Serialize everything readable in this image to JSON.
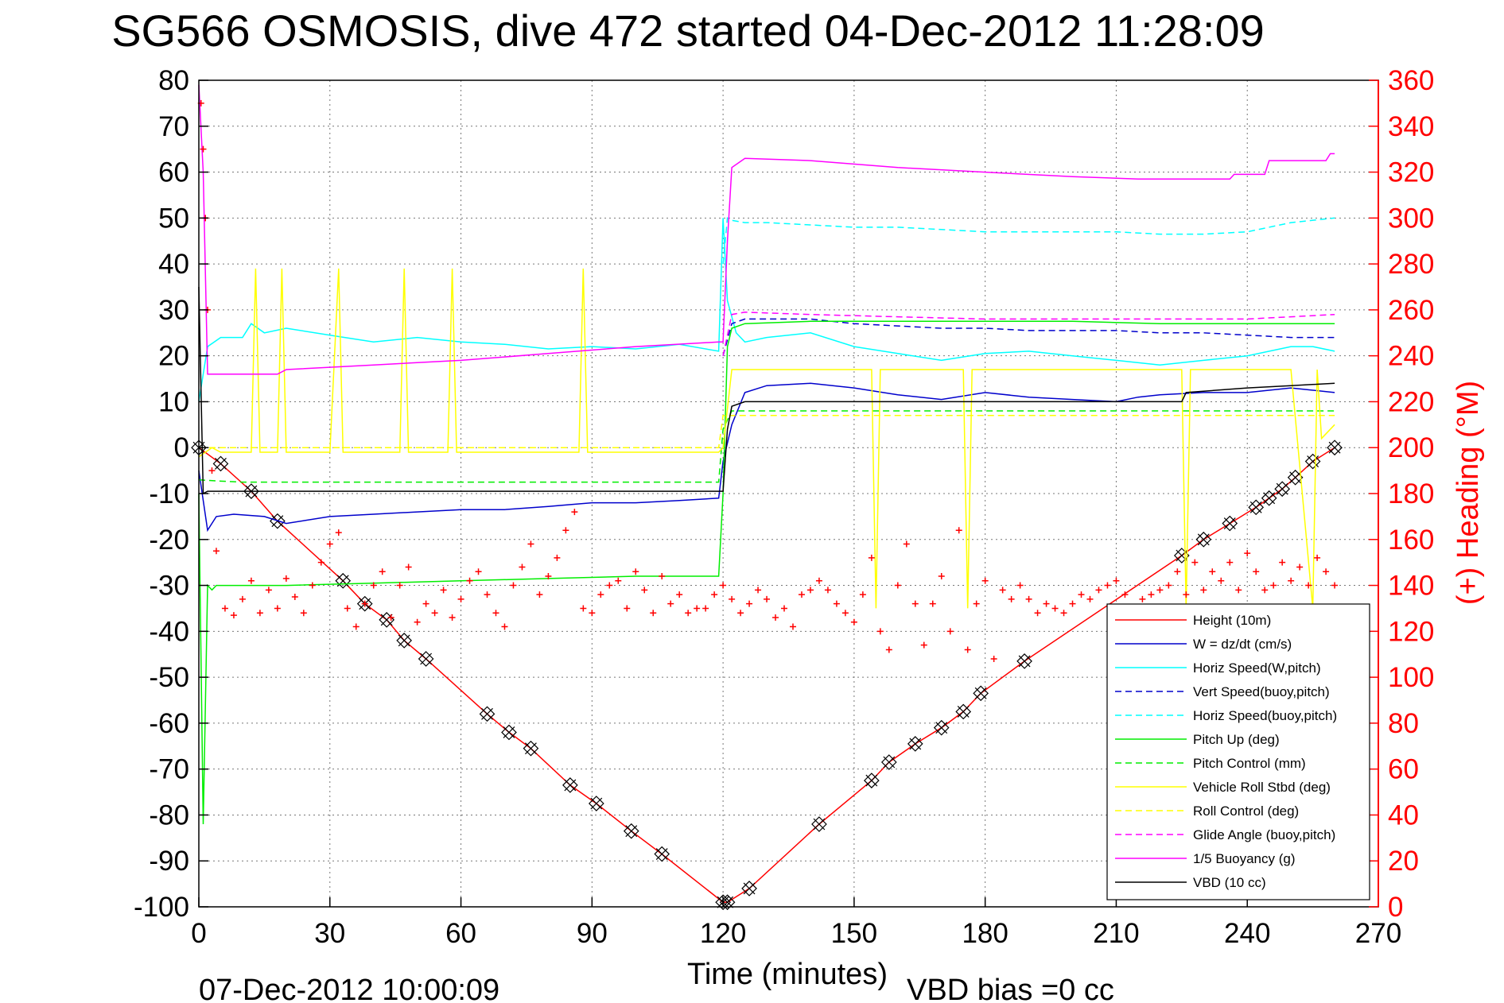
{
  "chart_data": {
    "type": "line",
    "title": "SG566 OSMOSIS, dive 472 started 04-Dec-2012 11:28:09",
    "xlabel": "Time (minutes)",
    "y2label": "(+) Heading (°M)",
    "footer_left": "07-Dec-2012 10:00:09",
    "footer_right": "VBD bias =0 cc",
    "xlim": [
      0,
      270
    ],
    "ylim": [
      -100,
      80
    ],
    "y2lim": [
      0,
      360
    ],
    "xticks": [
      "0",
      "30",
      "60",
      "90",
      "120",
      "150",
      "180",
      "210",
      "240",
      "270"
    ],
    "yticks": [
      "80",
      "70",
      "60",
      "50",
      "40",
      "30",
      "20",
      "10",
      "0",
      "-10",
      "-20",
      "-30",
      "-40",
      "-50",
      "-60",
      "-70",
      "-80",
      "-90",
      "-100"
    ],
    "y2ticks": [
      "360",
      "340",
      "320",
      "300",
      "280",
      "260",
      "240",
      "220",
      "200",
      "180",
      "160",
      "140",
      "120",
      "100",
      "80",
      "60",
      "40",
      "20",
      "0"
    ],
    "grid": true,
    "legend_position": "bottom-right",
    "colors": {
      "red": "#ff0000",
      "blue": "#0000cc",
      "cyan": "#00ffff",
      "green": "#00ee00",
      "yellow": "#ffff00",
      "magenta": "#ff00ff",
      "black": "#000000"
    },
    "series": [
      {
        "name": "Height (10m)",
        "color": "#ff0000",
        "dash": "solid",
        "x": [
          0,
          5,
          12,
          18,
          33,
          38,
          43,
          47,
          52,
          66,
          71,
          76,
          85,
          91,
          99,
          106,
          120,
          121,
          126,
          142,
          154,
          158,
          164,
          170,
          175,
          179,
          189,
          225,
          230,
          236,
          242,
          245,
          248,
          251,
          255,
          260
        ],
        "y": [
          0,
          -3.5,
          -9.5,
          -16,
          -29,
          -34,
          -37.5,
          -42,
          -46,
          -58,
          -62,
          -65.5,
          -73.5,
          -77.5,
          -83.5,
          -88.5,
          -99,
          -99,
          -96,
          -82,
          -72.5,
          -68.5,
          -64.5,
          -61,
          -57.5,
          -53.5,
          -46.5,
          -23.5,
          -20,
          -16.5,
          -13,
          -11,
          -9,
          -6.5,
          -3,
          0
        ]
      },
      {
        "name": "W = dz/dt (cm/s)",
        "color": "#0000cc",
        "dash": "solid",
        "x": [
          0,
          2,
          4,
          8,
          15,
          20,
          30,
          40,
          50,
          60,
          70,
          80,
          90,
          100,
          110,
          119,
          120,
          122,
          125,
          130,
          140,
          150,
          160,
          170,
          180,
          190,
          200,
          210,
          215,
          220,
          230,
          240,
          250,
          255,
          260
        ],
        "y": [
          -5,
          -18,
          -15,
          -14.5,
          -15,
          -16.5,
          -15,
          -14.5,
          -14,
          -13.5,
          -13.5,
          -12.8,
          -12,
          -12,
          -11.5,
          -11,
          -3,
          5,
          12,
          13.5,
          14,
          13,
          11.5,
          10.5,
          12,
          11,
          10.5,
          10,
          11,
          11.5,
          12,
          12,
          13,
          12.5,
          12
        ]
      },
      {
        "name": "Horiz Speed(W,pitch)",
        "color": "#00ffff",
        "dash": "solid",
        "x": [
          0,
          2,
          5,
          10,
          12,
          15,
          20,
          30,
          40,
          50,
          60,
          70,
          80,
          90,
          100,
          110,
          119,
          120,
          121,
          123,
          125,
          130,
          140,
          150,
          160,
          170,
          180,
          190,
          200,
          210,
          220,
          230,
          240,
          250,
          255,
          260
        ],
        "y": [
          10,
          22,
          24,
          24,
          27,
          25,
          26,
          24.5,
          23,
          24,
          23,
          22.5,
          21.5,
          22,
          21.5,
          22.5,
          21,
          50,
          32,
          25,
          23,
          24,
          25,
          22,
          20.5,
          19,
          20.5,
          21,
          20,
          19,
          18,
          19,
          20,
          22,
          22,
          21
        ]
      },
      {
        "name": "Vert Speed(buoy,pitch)",
        "color": "#0000cc",
        "dash": "dashed",
        "x": [
          120,
          122,
          125,
          140,
          150,
          160,
          170,
          180,
          190,
          200,
          210,
          220,
          230,
          240,
          250,
          260
        ],
        "y": [
          20,
          27,
          28,
          28,
          27,
          26.5,
          26,
          26,
          25.5,
          25.5,
          25.5,
          25,
          25,
          24.5,
          24,
          24
        ]
      },
      {
        "name": "Horiz Speed(buoy,pitch)",
        "color": "#00ffff",
        "dash": "dashed",
        "x": [
          120,
          121,
          122,
          125,
          130,
          140,
          150,
          160,
          170,
          180,
          190,
          200,
          210,
          220,
          230,
          240,
          250,
          260
        ],
        "y": [
          40,
          50,
          49.5,
          49,
          49,
          48.5,
          48,
          48,
          47.5,
          47,
          47,
          47,
          47,
          46.5,
          46.5,
          47,
          49,
          50
        ]
      },
      {
        "name": "Pitch Up (deg)",
        "color": "#00ee00",
        "dash": "solid",
        "x": [
          0,
          1,
          2,
          3,
          4,
          5,
          10,
          20,
          40,
          60,
          80,
          100,
          119,
          120,
          121,
          122,
          125,
          140,
          160,
          180,
          200,
          220,
          240,
          250,
          255,
          260
        ],
        "y": [
          -10,
          -82,
          -30,
          -31,
          -30,
          -30,
          -30,
          -30,
          -29.5,
          -29,
          -28.5,
          -28,
          -28,
          -10,
          22,
          26,
          27,
          27.5,
          27.5,
          27.5,
          27.5,
          27,
          27,
          27,
          27,
          27
        ]
      },
      {
        "name": "Pitch Control (mm)",
        "color": "#00ee00",
        "dash": "dashed",
        "x": [
          0,
          5,
          10,
          20,
          40,
          60,
          80,
          100,
          119,
          120,
          122,
          130,
          150,
          170,
          190,
          210,
          230,
          250,
          260
        ],
        "y": [
          -7,
          -7.3,
          -7.5,
          -7.5,
          -7.5,
          -7.5,
          -7.5,
          -7.5,
          -7.5,
          4,
          8,
          8,
          8,
          8,
          8,
          8,
          8,
          8,
          8
        ]
      },
      {
        "name": "Vehicle Roll Stbd (deg)",
        "color": "#ffff00",
        "dash": "solid",
        "x": [
          0,
          3,
          5,
          12,
          13,
          14,
          18,
          19,
          20,
          30,
          32,
          33,
          34,
          40,
          46,
          47,
          48,
          55,
          57,
          58,
          59,
          70,
          80,
          87,
          88,
          89,
          95,
          100,
          119,
          120,
          122,
          125,
          130,
          150,
          154,
          155,
          156,
          165,
          175,
          176,
          177,
          180,
          190,
          200,
          210,
          225,
          226,
          227,
          235,
          240,
          250,
          255,
          256,
          257,
          260
        ],
        "y": [
          -2,
          0,
          -1,
          -1,
          39,
          -1,
          -1,
          39,
          -1,
          -1,
          39,
          -1,
          -1,
          -1,
          -1,
          39,
          -1,
          -1,
          -1,
          39,
          -1,
          -1,
          -1,
          -1,
          39,
          -1,
          -1,
          -1,
          -1,
          0,
          17,
          17,
          17,
          17,
          17,
          -35,
          17,
          17,
          17,
          -35,
          17,
          17,
          17,
          17,
          17,
          17,
          -35,
          17,
          17,
          17,
          17,
          -35,
          17,
          2,
          5
        ]
      },
      {
        "name": "Roll Control (deg)",
        "color": "#ffff00",
        "dash": "dashed",
        "x": [
          0,
          10,
          20,
          40,
          60,
          80,
          100,
          119,
          120,
          125,
          140,
          160,
          180,
          200,
          220,
          240,
          260
        ],
        "y": [
          0,
          0,
          0,
          0,
          0,
          0,
          0,
          0,
          7,
          7,
          7,
          7,
          7,
          7,
          7,
          7,
          7
        ]
      },
      {
        "name": "Glide Angle (buoy,pitch)",
        "color": "#ff00ff",
        "dash": "dashed",
        "x": [
          120,
          122,
          125,
          140,
          160,
          180,
          200,
          220,
          240,
          250,
          260
        ],
        "y": [
          20,
          29,
          29.5,
          29,
          28.5,
          28,
          28,
          28,
          28,
          28.5,
          29
        ]
      },
      {
        "name": "1/5 Buoyancy (g)",
        "color": "#ff00ff",
        "dash": "solid",
        "x": [
          0,
          1,
          2,
          5,
          18,
          20,
          40,
          60,
          80,
          100,
          119,
          120,
          121,
          122,
          125,
          140,
          160,
          180,
          200,
          215,
          230,
          236,
          237,
          240,
          244,
          245,
          258,
          259,
          260
        ],
        "y": [
          79,
          60,
          16,
          16,
          16,
          17,
          18,
          19,
          20.5,
          22,
          23,
          23,
          45,
          61,
          63,
          62.5,
          61,
          60,
          59,
          58.5,
          58.5,
          58.5,
          59.5,
          59.5,
          59.5,
          62.5,
          62.5,
          64,
          64
        ]
      },
      {
        "name": "VBD (10 cc)",
        "color": "#000000",
        "dash": "solid",
        "x": [
          0,
          1,
          2,
          5,
          10,
          20,
          40,
          60,
          80,
          100,
          119,
          120,
          121,
          122,
          125,
          130,
          150,
          170,
          190,
          210,
          225,
          226,
          240,
          250,
          260
        ],
        "y": [
          35,
          -10,
          -9.5,
          -9.5,
          -9.5,
          -9.5,
          -9.5,
          -9.5,
          -9.5,
          -9.5,
          -9.5,
          -9.5,
          4,
          9,
          10,
          10,
          10,
          10,
          10,
          10,
          10,
          12,
          13,
          13.5,
          14
        ]
      },
      {
        "name": "Heading",
        "color": "#ff0000",
        "dash": "markers",
        "axis": "right",
        "x": [
          0.5,
          1,
          1.5,
          2,
          3,
          4,
          6,
          8,
          10,
          12,
          14,
          16,
          18,
          20,
          22,
          24,
          26,
          28,
          30,
          32,
          34,
          36,
          38,
          40,
          42,
          44,
          46,
          48,
          50,
          52,
          54,
          56,
          58,
          60,
          62,
          64,
          66,
          68,
          70,
          72,
          74,
          76,
          78,
          80,
          82,
          84,
          86,
          88,
          90,
          92,
          94,
          96,
          98,
          100,
          102,
          104,
          106,
          108,
          110,
          112,
          114,
          116,
          118,
          120,
          122,
          124,
          126,
          128,
          130,
          132,
          134,
          136,
          138,
          140,
          142,
          144,
          146,
          148,
          150,
          152,
          154,
          156,
          158,
          160,
          162,
          164,
          166,
          168,
          170,
          172,
          174,
          176,
          178,
          180,
          182,
          184,
          186,
          188,
          190,
          192,
          194,
          196,
          198,
          200,
          202,
          204,
          206,
          208,
          210,
          212,
          214,
          216,
          218,
          220,
          222,
          224,
          226,
          228,
          230,
          232,
          234,
          236,
          238,
          240,
          242,
          244,
          246,
          248,
          250,
          252,
          254,
          256,
          258,
          260
        ],
        "y": [
          350,
          330,
          300,
          260,
          190,
          155,
          130,
          127,
          134,
          142,
          128,
          138,
          130,
          143,
          135,
          128,
          140,
          150,
          158,
          163,
          130,
          122,
          132,
          140,
          146,
          126,
          140,
          148,
          124,
          132,
          128,
          138,
          126,
          134,
          142,
          146,
          136,
          128,
          122,
          140,
          148,
          158,
          136,
          144,
          152,
          164,
          172,
          130,
          128,
          136,
          140,
          142,
          130,
          146,
          138,
          128,
          144,
          132,
          136,
          128,
          130,
          130,
          136,
          140,
          134,
          128,
          132,
          138,
          134,
          126,
          130,
          122,
          136,
          138,
          142,
          138,
          132,
          128,
          124,
          136,
          152,
          120,
          112,
          140,
          158,
          132,
          114,
          132,
          144,
          120,
          164,
          112,
          132,
          142,
          108,
          138,
          134,
          140,
          134,
          128,
          132,
          130,
          128,
          132,
          136,
          134,
          138,
          140,
          142,
          136,
          130,
          134,
          136,
          138,
          140,
          146,
          136,
          150,
          138,
          146,
          142,
          150,
          138,
          154,
          146,
          138,
          140,
          150,
          142,
          148,
          140,
          152,
          146,
          140
        ]
      }
    ]
  }
}
